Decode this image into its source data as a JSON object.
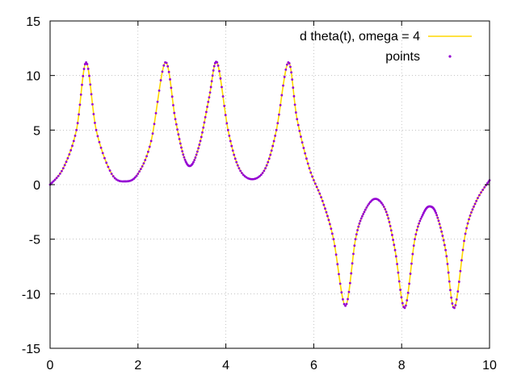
{
  "chart_data": {
    "type": "line",
    "title": "",
    "xlabel": "",
    "ylabel": "",
    "xlim": [
      0,
      10
    ],
    "ylim": [
      -15,
      15
    ],
    "x_ticks": [
      0,
      2,
      4,
      6,
      8,
      10
    ],
    "y_ticks": [
      -15,
      -10,
      -5,
      0,
      5,
      10,
      15
    ],
    "x_tick_labels": [
      "0",
      "2",
      "4",
      "6",
      "8",
      "10"
    ],
    "y_tick_labels": [
      "-15",
      "-10",
      "-5",
      "0",
      "5",
      "10",
      "15"
    ],
    "grid": true,
    "legend_position": "top-right",
    "series": [
      {
        "name": "d theta(t), omega = 4",
        "style": "line",
        "color": "#ffd700",
        "x": [
          0,
          0.3,
          0.6,
          0.82,
          1.05,
          1.4,
          1.72,
          2.0,
          2.3,
          2.62,
          2.85,
          3.05,
          3.22,
          3.42,
          3.62,
          3.8,
          4.05,
          4.3,
          4.6,
          4.9,
          5.15,
          5.42,
          5.62,
          5.9,
          6.2,
          6.45,
          6.72,
          6.95,
          7.15,
          7.4,
          7.65,
          7.85,
          8.07,
          8.3,
          8.5,
          8.65,
          8.8,
          9.0,
          9.2,
          9.45,
          9.7,
          10.0
        ],
        "y": [
          0,
          1.5,
          5.0,
          11.2,
          5.0,
          1.0,
          0.3,
          1.0,
          4.0,
          11.2,
          6.0,
          2.5,
          1.8,
          4.0,
          8.0,
          11.2,
          5.0,
          1.5,
          0.5,
          1.5,
          5.0,
          11.2,
          6.0,
          1.5,
          -1.5,
          -5.0,
          -11.1,
          -5.0,
          -2.5,
          -1.3,
          -2.5,
          -6.0,
          -11.3,
          -5.0,
          -2.6,
          -2.0,
          -2.8,
          -6.0,
          -11.3,
          -4.5,
          -1.5,
          0.4
        ]
      },
      {
        "name": "points",
        "style": "points",
        "color": "#9400d3",
        "x": [
          0,
          0.3,
          0.6,
          0.82,
          1.05,
          1.4,
          1.72,
          2.0,
          2.3,
          2.62,
          2.85,
          3.05,
          3.22,
          3.42,
          3.62,
          3.8,
          4.05,
          4.3,
          4.6,
          4.9,
          5.15,
          5.42,
          5.62,
          5.9,
          6.2,
          6.45,
          6.72,
          6.95,
          7.15,
          7.4,
          7.65,
          7.85,
          8.07,
          8.3,
          8.5,
          8.65,
          8.8,
          9.0,
          9.2,
          9.45,
          9.7,
          10.0
        ],
        "y": [
          0,
          1.5,
          5.0,
          11.2,
          5.0,
          1.0,
          0.3,
          1.0,
          4.0,
          11.2,
          6.0,
          2.5,
          1.8,
          4.0,
          8.0,
          11.2,
          5.0,
          1.5,
          0.5,
          1.5,
          5.0,
          11.2,
          6.0,
          1.5,
          -1.5,
          -5.0,
          -11.1,
          -5.0,
          -2.5,
          -1.3,
          -2.5,
          -6.0,
          -11.3,
          -5.0,
          -2.6,
          -2.0,
          -2.8,
          -6.0,
          -11.3,
          -4.5,
          -1.5,
          0.4
        ]
      }
    ]
  }
}
